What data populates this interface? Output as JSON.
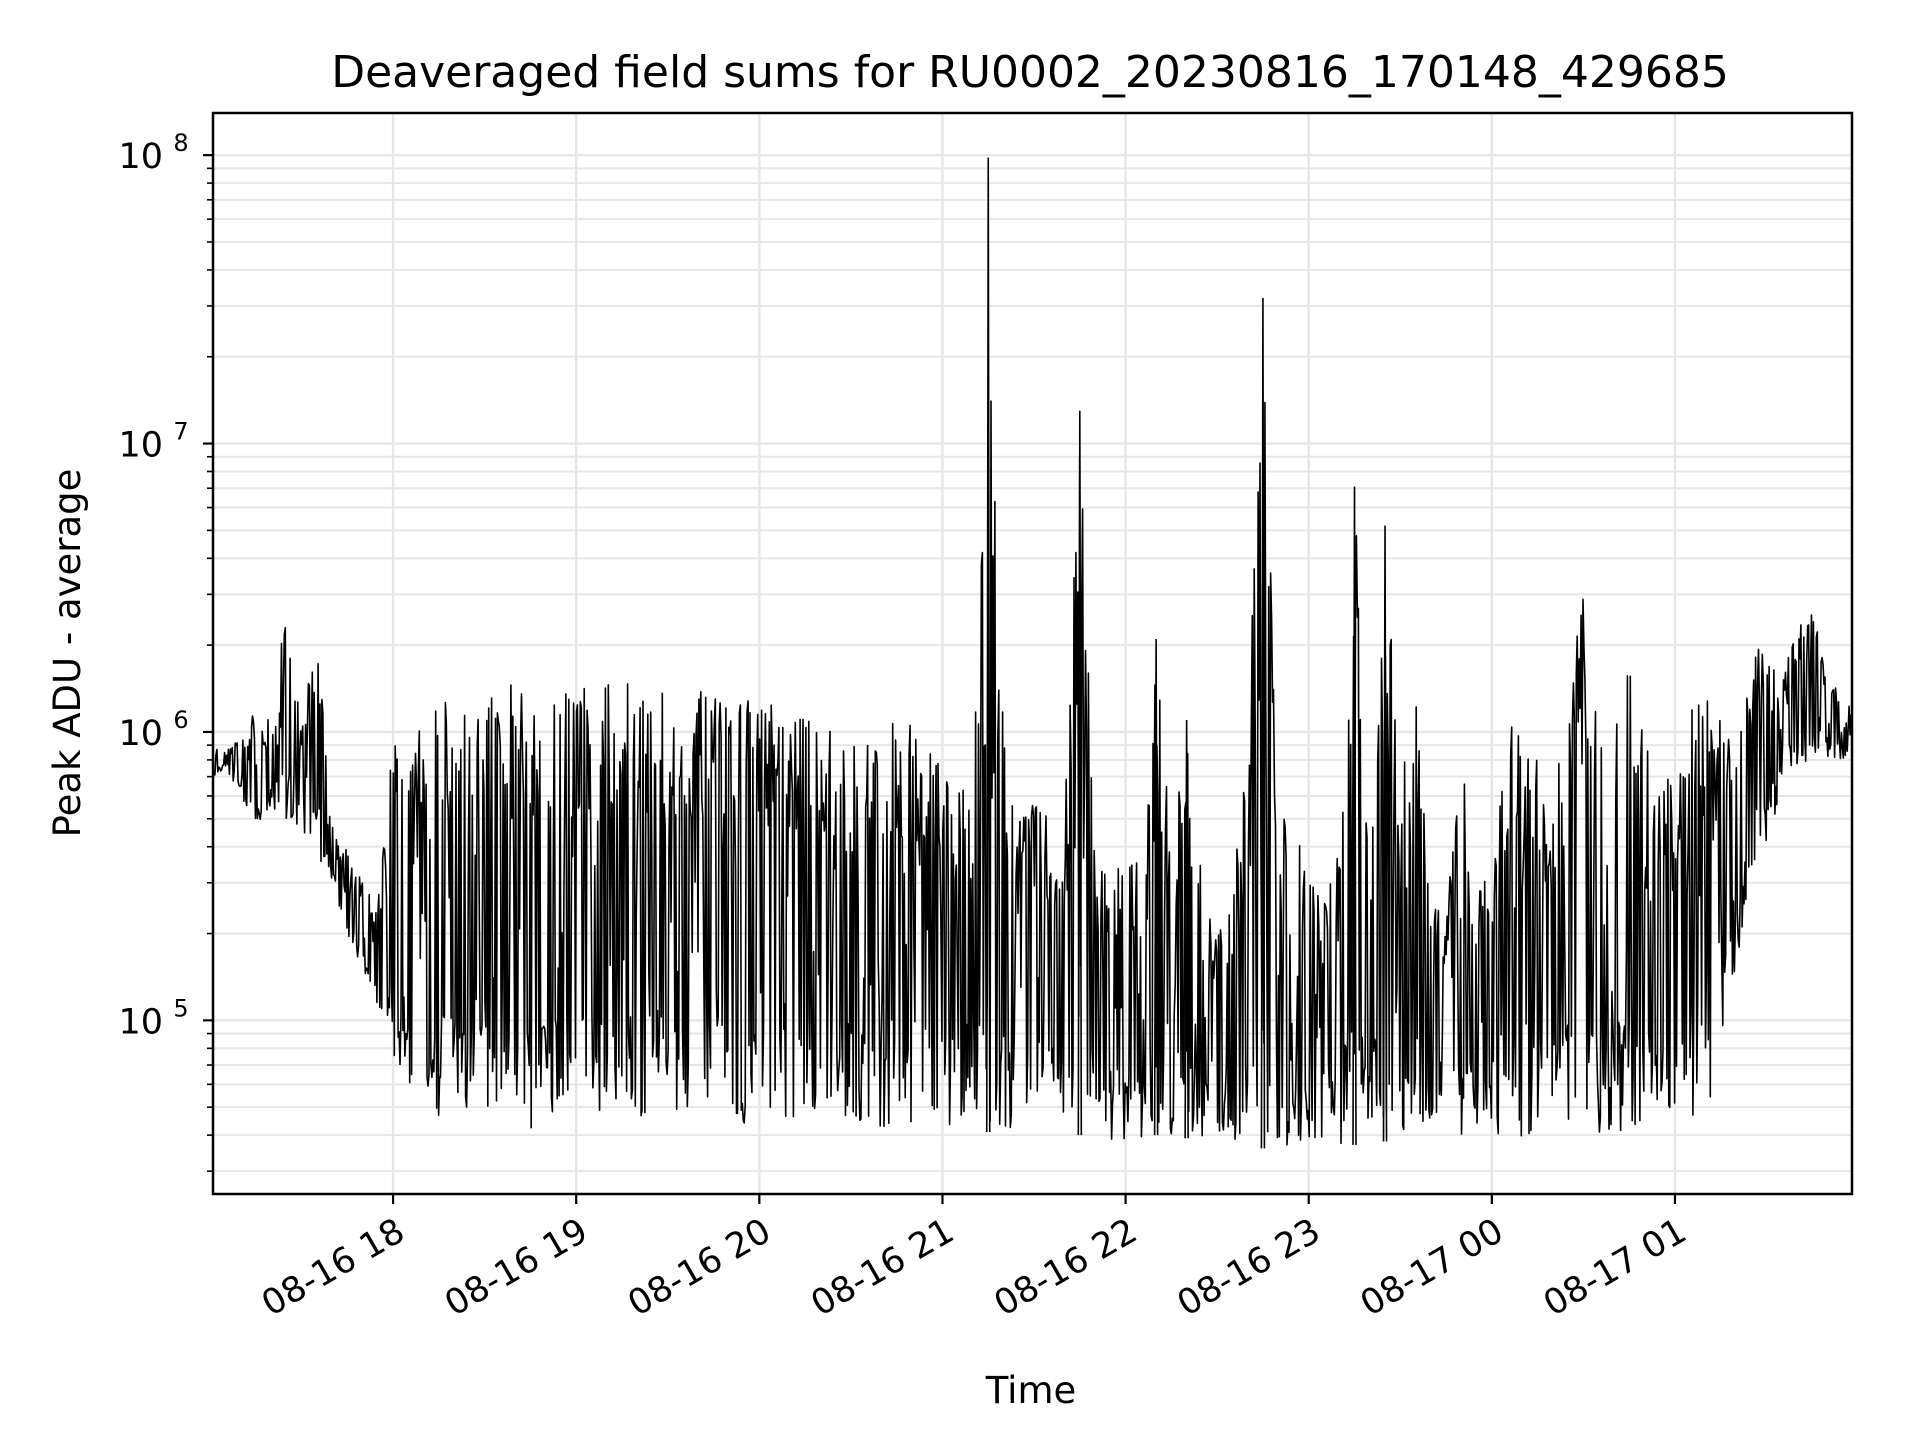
{
  "chart_data": {
    "type": "line",
    "title": "Deaveraged field sums for RU0002_20230816_170148_429685",
    "xlabel": "Time",
    "ylabel": "Peak ADU - average",
    "yscale": "log",
    "xlim": [
      "2023-08-16 17:01",
      "2023-08-17 01:58"
    ],
    "ylim": [
      25000,
      140000000
    ],
    "grid": true,
    "legend": "none",
    "line_color": "#000000",
    "grid_color": "#e6e6e6",
    "x_ticks": [
      {
        "t": "2023-08-16 18:00",
        "label": "08-16 18"
      },
      {
        "t": "2023-08-16 19:00",
        "label": "08-16 19"
      },
      {
        "t": "2023-08-16 20:00",
        "label": "08-16 20"
      },
      {
        "t": "2023-08-16 21:00",
        "label": "08-16 21"
      },
      {
        "t": "2023-08-16 22:00",
        "label": "08-16 22"
      },
      {
        "t": "2023-08-16 23:00",
        "label": "08-16 23"
      },
      {
        "t": "2023-08-17 00:00",
        "label": "08-17 00"
      },
      {
        "t": "2023-08-17 01:00",
        "label": "08-17 01"
      }
    ],
    "y_ticks": [
      {
        "value": 100000,
        "base": "10",
        "exp": "5"
      },
      {
        "value": 1000000,
        "base": "10",
        "exp": "6"
      },
      {
        "value": 10000000,
        "base": "10",
        "exp": "7"
      },
      {
        "value": 100000000,
        "base": "10",
        "exp": "8"
      }
    ],
    "series": [
      {
        "time": [
          "2023-08-16 17:01",
          "2023-08-16 17:05",
          "2023-08-16 17:10",
          "2023-08-16 17:15",
          "2023-08-16 17:20",
          "2023-08-16 17:25",
          "2023-08-16 17:30",
          "2023-08-16 17:35",
          "2023-08-16 17:40",
          "2023-08-16 17:45",
          "2023-08-16 17:50",
          "2023-08-16 17:55",
          "2023-08-16 18:00",
          "2023-08-16 18:05",
          "2023-08-16 18:10",
          "2023-08-16 18:15",
          "2023-08-16 18:20",
          "2023-08-16 18:25",
          "2023-08-16 18:30",
          "2023-08-16 18:35",
          "2023-08-16 18:40",
          "2023-08-16 18:45",
          "2023-08-16 18:50",
          "2023-08-16 18:55",
          "2023-08-16 19:00",
          "2023-08-16 19:05",
          "2023-08-16 19:10",
          "2023-08-16 19:15",
          "2023-08-16 19:20",
          "2023-08-16 19:25",
          "2023-08-16 19:30",
          "2023-08-16 19:35",
          "2023-08-16 19:40",
          "2023-08-16 19:45",
          "2023-08-16 19:50",
          "2023-08-16 19:55",
          "2023-08-16 20:00",
          "2023-08-16 20:05",
          "2023-08-16 20:10",
          "2023-08-16 20:15",
          "2023-08-16 20:20",
          "2023-08-16 20:25",
          "2023-08-16 20:30",
          "2023-08-16 20:35",
          "2023-08-16 20:40",
          "2023-08-16 20:45",
          "2023-08-16 20:50",
          "2023-08-16 20:55",
          "2023-08-16 21:00",
          "2023-08-16 21:05",
          "2023-08-16 21:10",
          "2023-08-16 21:15",
          "2023-08-16 21:20",
          "2023-08-16 21:25",
          "2023-08-16 21:30",
          "2023-08-16 21:35",
          "2023-08-16 21:40",
          "2023-08-16 21:45",
          "2023-08-16 21:50",
          "2023-08-16 21:55",
          "2023-08-16 22:00",
          "2023-08-16 22:05",
          "2023-08-16 22:10",
          "2023-08-16 22:15",
          "2023-08-16 22:20",
          "2023-08-16 22:25",
          "2023-08-16 22:30",
          "2023-08-16 22:35",
          "2023-08-16 22:40",
          "2023-08-16 22:45",
          "2023-08-16 22:50",
          "2023-08-16 22:55",
          "2023-08-16 23:00",
          "2023-08-16 23:05",
          "2023-08-16 23:10",
          "2023-08-16 23:15",
          "2023-08-16 23:20",
          "2023-08-16 23:25",
          "2023-08-16 23:30",
          "2023-08-16 23:35",
          "2023-08-16 23:40",
          "2023-08-16 23:45",
          "2023-08-16 23:50",
          "2023-08-16 23:55",
          "2023-08-17 00:00",
          "2023-08-17 00:05",
          "2023-08-17 00:10",
          "2023-08-17 00:15",
          "2023-08-17 00:20",
          "2023-08-17 00:25",
          "2023-08-17 00:30",
          "2023-08-17 00:35",
          "2023-08-17 00:40",
          "2023-08-17 00:45",
          "2023-08-17 00:50",
          "2023-08-17 00:55",
          "2023-08-17 01:00",
          "2023-08-17 01:05",
          "2023-08-17 01:10",
          "2023-08-17 01:15",
          "2023-08-17 01:20",
          "2023-08-17 01:25",
          "2023-08-17 01:30",
          "2023-08-17 01:35",
          "2023-08-17 01:40",
          "2023-08-17 01:45",
          "2023-08-17 01:50",
          "2023-08-17 01:55",
          "2023-08-17 01:58"
        ],
        "upper": [
          950000,
          850000,
          1000000,
          1200000,
          1100000,
          2800000,
          1100000,
          2300000,
          480000,
          400000,
          300000,
          250000,
          1400000,
          1300000,
          1500000,
          1400000,
          1550000,
          1300000,
          1600000,
          1450000,
          1550000,
          1400000,
          1500000,
          1550000,
          1500000,
          1500000,
          1450000,
          1600000,
          1450000,
          1500000,
          1350000,
          1400000,
          1400000,
          1300000,
          1450000,
          1350000,
          1400000,
          1200000,
          1200000,
          1150000,
          1300000,
          1100000,
          1200000,
          1000000,
          1150000,
          1100000,
          1250000,
          850000,
          800000,
          700000,
          550000,
          98000000,
          950000,
          800000,
          650000,
          550000,
          480000,
          13000000,
          420000,
          380000,
          350000,
          380000,
          2100000,
          380000,
          1100000,
          300000,
          200000,
          300000,
          850000,
          32000000,
          450000,
          720000,
          350000,
          280000,
          450000,
          7100000,
          380000,
          5200000,
          650000,
          1300000,
          420000,
          250000,
          850000,
          320000,
          300000,
          1100000,
          1150000,
          800000,
          650000,
          1200000,
          3600000,
          1400000,
          1300000,
          3300000,
          1400000,
          700000,
          700000,
          1200000,
          1400000,
          1200000,
          900000,
          2200000,
          1900000,
          1500000,
          2500000,
          2700000,
          1500000,
          1400000,
          1200000
        ],
        "lower": [
          700000,
          750000,
          600000,
          450000,
          550000,
          500000,
          450000,
          380000,
          300000,
          200000,
          150000,
          110000,
          60000,
          55000,
          48000,
          45000,
          43000,
          42000,
          40000,
          38000,
          36000,
          42000,
          45000,
          48000,
          50000,
          48000,
          46000,
          45000,
          44000,
          45000,
          46000,
          48000,
          47000,
          45000,
          46000,
          44000,
          42000,
          43000,
          44000,
          46000,
          47000,
          45000,
          44000,
          42000,
          38000,
          40000,
          43000,
          45000,
          44000,
          43000,
          42000,
          41000,
          40000,
          41000,
          42000,
          41000,
          40000,
          40000,
          39000,
          38000,
          38000,
          39000,
          40000,
          40000,
          39000,
          38000,
          37000,
          37000,
          37000,
          36000,
          36000,
          37000,
          37000,
          38000,
          37000,
          37000,
          37000,
          38000,
          39000,
          39000,
          38000,
          38000,
          38000,
          39000,
          40000,
          40000,
          39000,
          40000,
          41000,
          40000,
          37000,
          40000,
          42000,
          41000,
          40000,
          40000,
          41000,
          42000,
          45000,
          80000,
          150000,
          300000,
          420000,
          600000,
          750000,
          800000,
          820000,
          800000,
          800000
        ]
      }
    ]
  }
}
